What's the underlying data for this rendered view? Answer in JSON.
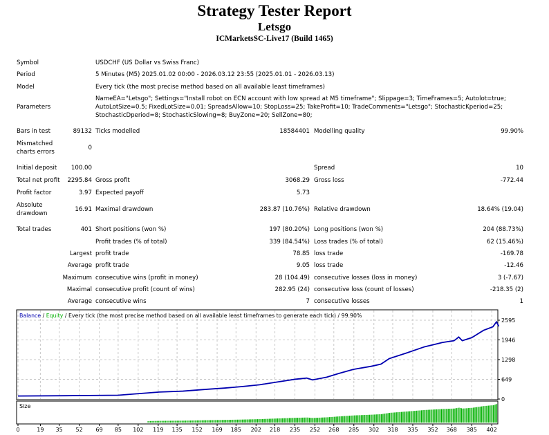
{
  "header": {
    "title": "Strategy Tester Report",
    "ea": "Letsgo",
    "server": "ICMarketsSC-Live17 (Build 1465)"
  },
  "info": {
    "symbol_label": "Symbol",
    "symbol": "USDCHF (US Dollar vs Swiss Franc)",
    "period_label": "Period",
    "period": "5 Minutes (M5) 2025.01.02 00:00 - 2026.03.12 23:55 (2025.01.01 - 2026.03.13)",
    "model_label": "Model",
    "model": "Every tick (the most precise method based on all available least timeframes)",
    "parameters_label": "Parameters",
    "parameters": [
      "NameEA=\"Letsgo\"; Settings=\"Install robot on ECN account with low spread at M5 timeframe\"; Slippage=3; TimeFrames=5; Autolot=true;",
      "AutoLotSize=0.5; FixedLotSize=0.01; SpreadsAllow=10; StopLoss=25; TakeProfit=10; TradeComments=\"Letsgo\"; StochasticKperiod=25;",
      "StochasticDperiod=8; StochasticSlowing=8; BuyZone=20; SellZone=80;"
    ]
  },
  "stats": {
    "bars_label": "Bars in test",
    "bars": "89132",
    "ticks_label": "Ticks modelled",
    "ticks": "18584401",
    "quality_label": "Modelling quality",
    "quality": "99.90%",
    "mismatch_label1": "Mismatched",
    "mismatch_label2": "charts errors",
    "mismatch": "0",
    "deposit_label": "Initial deposit",
    "deposit": "100.00",
    "spread_label": "Spread",
    "spread": "10",
    "net_label": "Total net profit",
    "net": "2295.84",
    "gross_profit_label": "Gross profit",
    "gross_profit": "3068.29",
    "gross_loss_label": "Gross loss",
    "gross_loss": "-772.44",
    "pf_label": "Profit factor",
    "pf": "3.97",
    "payoff_label": "Expected payoff",
    "payoff": "5.73",
    "absdd_label1": "Absolute",
    "absdd_label2": "drawdown",
    "absdd": "16.91",
    "maxdd_label": "Maximal drawdown",
    "maxdd": "283.87 (10.76%)",
    "reldd_label": "Relative drawdown",
    "reldd": "18.64% (19.04)",
    "trades_label": "Total trades",
    "trades": "401",
    "short_label": "Short positions (won %)",
    "short": "197 (80.20%)",
    "long_label": "Long positions (won %)",
    "long": "204 (88.73%)",
    "pt_label": "Profit trades (% of total)",
    "pt": "339 (84.54%)",
    "lt_label": "Loss trades (% of total)",
    "lt": "62 (15.46%)",
    "largest_label": "Largest",
    "lp_label": "profit trade",
    "lp": "78.85",
    "ll_label": "loss trade",
    "ll": "-169.78",
    "average_label": "Average",
    "ap_label": "profit trade",
    "ap": "9.05",
    "al_label": "loss trade",
    "al": "-12.46",
    "maximum_label": "Maximum",
    "mcw_label": "consecutive wins (profit in money)",
    "mcw": "28 (104.49)",
    "mcl_label": "consecutive losses (loss in money)",
    "mcl": "3 (-7.67)",
    "maximal_label": "Maximal",
    "mcp_label": "consecutive profit (count of wins)",
    "mcp": "282.95 (24)",
    "mclc_label": "consecutive loss (count of losses)",
    "mclc": "-218.35 (2)",
    "average2_label": "Average",
    "acw_label": "consecutive wins",
    "acw": "7",
    "acl_label": "consecutive losses",
    "acl": "1"
  },
  "chart_data": {
    "type": "line",
    "legend_balance": "Balance",
    "legend_sep1": " / ",
    "legend_equity": "Equity",
    "legend_rest": " / Every tick (the most precise method based on all available least timeframes to generate each tick) / 99.90%",
    "size_label": "Size",
    "yticks": [
      0,
      649,
      1298,
      1946,
      2595
    ],
    "xticks": [
      0,
      19,
      35,
      52,
      69,
      85,
      102,
      119,
      135,
      152,
      169,
      185,
      202,
      218,
      235,
      252,
      268,
      285,
      302,
      318,
      335,
      352,
      368,
      385,
      402
    ],
    "xlim": [
      0,
      406
    ],
    "ylim": [
      0,
      2595
    ],
    "balance": [
      [
        0,
        100
      ],
      [
        40,
        110
      ],
      [
        85,
        125
      ],
      [
        100,
        170
      ],
      [
        120,
        230
      ],
      [
        140,
        260
      ],
      [
        160,
        320
      ],
      [
        175,
        360
      ],
      [
        190,
        410
      ],
      [
        205,
        470
      ],
      [
        220,
        560
      ],
      [
        235,
        650
      ],
      [
        245,
        690
      ],
      [
        250,
        630
      ],
      [
        262,
        720
      ],
      [
        272,
        840
      ],
      [
        285,
        980
      ],
      [
        300,
        1080
      ],
      [
        308,
        1150
      ],
      [
        315,
        1330
      ],
      [
        330,
        1520
      ],
      [
        345,
        1720
      ],
      [
        360,
        1860
      ],
      [
        370,
        1920
      ],
      [
        374,
        2040
      ],
      [
        377,
        1920
      ],
      [
        385,
        2020
      ],
      [
        395,
        2260
      ],
      [
        403,
        2380
      ],
      [
        406,
        2540
      ],
      [
        408,
        2395
      ]
    ],
    "colors": {
      "balance": "#0000b0",
      "equity": "#00b000",
      "size": "#00b000",
      "grid": "#c8c8c8"
    }
  }
}
